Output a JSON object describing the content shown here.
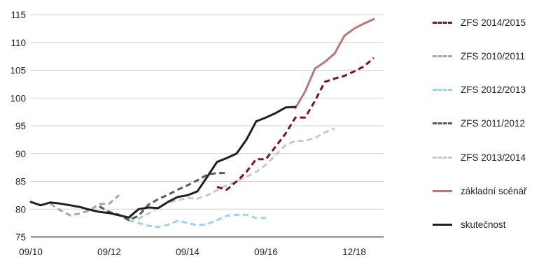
{
  "chart_data": {
    "type": "line",
    "title": "",
    "xlabel": "",
    "ylabel": "",
    "ylim": [
      75,
      115
    ],
    "yticks": [
      75,
      80,
      85,
      90,
      95,
      100,
      105,
      110,
      115
    ],
    "xlim": [
      0,
      36
    ],
    "x_unit": "quarters since Q3/2010",
    "xticks": [
      {
        "x": 0,
        "label": "09/10"
      },
      {
        "x": 8,
        "label": "09/12"
      },
      {
        "x": 16,
        "label": "09/14"
      },
      {
        "x": 24,
        "label": "09/16"
      },
      {
        "x": 33,
        "label": "12/18"
      }
    ],
    "grid": "horizontal",
    "legend_position": "right",
    "series": [
      {
        "name": "ZFS 2014/2015",
        "color": "#7a1134",
        "style": "dashed",
        "x": [
          19,
          20,
          21,
          22,
          23,
          24,
          25,
          26,
          27,
          28,
          29,
          30,
          31,
          32,
          33,
          34,
          35
        ],
        "y": [
          84.0,
          83.5,
          85.0,
          86.7,
          89.0,
          89.0,
          91.3,
          93.6,
          96.5,
          96.5,
          99.5,
          102.9,
          103.5,
          104.0,
          104.8,
          105.7,
          107.2
        ]
      },
      {
        "name": "ZFS 2010/2011",
        "color": "#a6a6a6",
        "style": "dashed",
        "x": [
          2,
          3,
          4,
          5,
          6,
          7,
          8,
          9
        ],
        "y": [
          81.0,
          79.8,
          78.9,
          79.2,
          79.8,
          80.9,
          81.0,
          82.5
        ]
      },
      {
        "name": "ZFS 2012/2013",
        "color": "#9dd3ef",
        "style": "dashed",
        "x": [
          10,
          11,
          12,
          13,
          14,
          15,
          16,
          17,
          18,
          19,
          20,
          21,
          22,
          23,
          24
        ],
        "y": [
          78.0,
          77.5,
          77.0,
          76.8,
          77.2,
          77.9,
          77.5,
          77.1,
          77.3,
          78.0,
          78.8,
          79.0,
          79.0,
          78.4,
          78.4
        ]
      },
      {
        "name": "ZFS 2011/2012",
        "color": "#58595b",
        "style": "dashed",
        "x": [
          7,
          8,
          9,
          10,
          11,
          12,
          13,
          14,
          15,
          16,
          17,
          18,
          19,
          20
        ],
        "y": [
          80.5,
          79.5,
          79.0,
          78.0,
          78.8,
          80.8,
          81.8,
          82.6,
          83.5,
          84.3,
          85.2,
          86.2,
          86.5,
          86.5
        ]
      },
      {
        "name": "ZFS 2013/2014",
        "color": "#c8c8c8",
        "style": "dashed",
        "x": [
          10,
          11,
          12,
          13,
          14,
          15,
          16,
          17,
          18,
          19,
          20,
          21,
          22,
          23,
          24,
          25,
          26,
          27,
          28,
          29,
          30,
          31
        ],
        "y": [
          78.5,
          78.3,
          79.2,
          80.2,
          81.2,
          81.6,
          82.0,
          81.9,
          82.5,
          83.4,
          84.3,
          85.0,
          85.8,
          86.7,
          88.0,
          89.8,
          91.5,
          92.3,
          92.3,
          92.8,
          93.8,
          94.5
        ]
      },
      {
        "name": "základní scénář",
        "color": "#b87a78",
        "style": "solid",
        "x": [
          27,
          28,
          29,
          30,
          31,
          32,
          33,
          34,
          35
        ],
        "y": [
          98.2,
          101.2,
          105.3,
          106.5,
          108.0,
          111.2,
          112.5,
          113.4,
          114.2
        ]
      },
      {
        "name": "skutečnost",
        "color": "#231f20",
        "style": "solid",
        "x": [
          0,
          1,
          2,
          3,
          4,
          5,
          6,
          7,
          8,
          9,
          10,
          11,
          12,
          13,
          14,
          15,
          16,
          17,
          18,
          19,
          20,
          21,
          22,
          23,
          24,
          25,
          26,
          27
        ],
        "y": [
          81.3,
          80.7,
          81.2,
          81.0,
          80.7,
          80.4,
          79.9,
          79.5,
          79.3,
          78.9,
          78.5,
          80.0,
          80.3,
          80.2,
          81.3,
          82.2,
          82.5,
          83.2,
          85.8,
          88.5,
          89.2,
          90.0,
          92.5,
          95.8,
          96.5,
          97.3,
          98.3,
          98.4
        ]
      }
    ]
  }
}
